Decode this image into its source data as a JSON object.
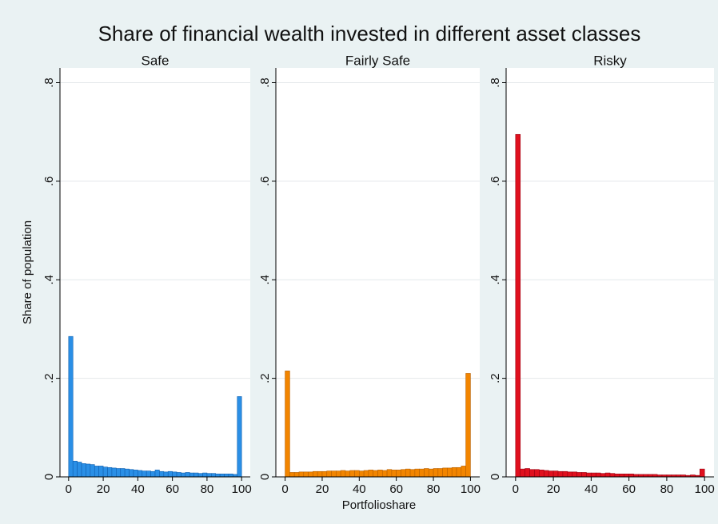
{
  "title": "Share of financial wealth invested in different asset classes",
  "ylabel": "Share of population",
  "xlabel": "Portfolioshare",
  "chart_data": [
    {
      "type": "histogram",
      "title": "Safe",
      "color": "#2a8fe6",
      "grid": true,
      "bins": [
        0,
        2.5,
        5,
        7.5,
        10,
        12.5,
        15,
        17.5,
        20,
        22.5,
        25,
        27.5,
        30,
        32.5,
        35,
        37.5,
        40,
        42.5,
        45,
        47.5,
        50,
        52.5,
        55,
        57.5,
        60,
        62.5,
        65,
        67.5,
        70,
        72.5,
        75,
        77.5,
        80,
        82.5,
        85,
        87.5,
        90,
        92.5,
        95,
        97.5,
        100
      ],
      "values": [
        0.285,
        0.032,
        0.03,
        0.027,
        0.026,
        0.025,
        0.022,
        0.022,
        0.02,
        0.019,
        0.018,
        0.017,
        0.017,
        0.016,
        0.015,
        0.014,
        0.013,
        0.012,
        0.012,
        0.011,
        0.014,
        0.011,
        0.01,
        0.011,
        0.01,
        0.009,
        0.008,
        0.009,
        0.008,
        0.008,
        0.007,
        0.008,
        0.007,
        0.007,
        0.006,
        0.006,
        0.006,
        0.006,
        0.005,
        0.163
      ],
      "xlim": [
        -5,
        105
      ],
      "xticks": [
        0,
        20,
        40,
        60,
        80,
        100
      ],
      "ylim": [
        0,
        0.83
      ],
      "yticks": [
        0,
        {
          "value": 0.2,
          "label": ".2"
        },
        {
          "value": 0.4,
          "label": ".4"
        },
        {
          "value": 0.6,
          "label": ".6"
        },
        {
          "value": 0.8,
          "label": ".8"
        }
      ]
    },
    {
      "type": "histogram",
      "title": "Fairly Safe",
      "color": "#f28500",
      "grid": true,
      "bins": [
        0,
        2.5,
        5,
        7.5,
        10,
        12.5,
        15,
        17.5,
        20,
        22.5,
        25,
        27.5,
        30,
        32.5,
        35,
        37.5,
        40,
        42.5,
        45,
        47.5,
        50,
        52.5,
        55,
        57.5,
        60,
        62.5,
        65,
        67.5,
        70,
        72.5,
        75,
        77.5,
        80,
        82.5,
        85,
        87.5,
        90,
        92.5,
        95,
        97.5,
        100
      ],
      "values": [
        0.215,
        0.009,
        0.009,
        0.01,
        0.01,
        0.01,
        0.011,
        0.011,
        0.011,
        0.012,
        0.012,
        0.012,
        0.013,
        0.012,
        0.013,
        0.013,
        0.012,
        0.013,
        0.014,
        0.013,
        0.014,
        0.013,
        0.015,
        0.014,
        0.014,
        0.015,
        0.016,
        0.015,
        0.016,
        0.016,
        0.017,
        0.016,
        0.017,
        0.017,
        0.018,
        0.018,
        0.019,
        0.019,
        0.022,
        0.21
      ],
      "xlim": [
        -5,
        105
      ],
      "xticks": [
        0,
        20,
        40,
        60,
        80,
        100
      ],
      "ylim": [
        0,
        0.83
      ],
      "yticks": [
        0,
        {
          "value": 0.2,
          "label": ".2"
        },
        {
          "value": 0.4,
          "label": ".4"
        },
        {
          "value": 0.6,
          "label": ".6"
        },
        {
          "value": 0.8,
          "label": ".8"
        }
      ]
    },
    {
      "type": "histogram",
      "title": "Risky",
      "color": "#e0101e",
      "grid": true,
      "bins": [
        0,
        2.5,
        5,
        7.5,
        10,
        12.5,
        15,
        17.5,
        20,
        22.5,
        25,
        27.5,
        30,
        32.5,
        35,
        37.5,
        40,
        42.5,
        45,
        47.5,
        50,
        52.5,
        55,
        57.5,
        60,
        62.5,
        65,
        67.5,
        70,
        72.5,
        75,
        77.5,
        80,
        82.5,
        85,
        87.5,
        90,
        92.5,
        95,
        97.5,
        100
      ],
      "values": [
        0.695,
        0.016,
        0.017,
        0.015,
        0.015,
        0.014,
        0.013,
        0.012,
        0.012,
        0.011,
        0.011,
        0.01,
        0.01,
        0.009,
        0.009,
        0.008,
        0.008,
        0.008,
        0.007,
        0.008,
        0.007,
        0.006,
        0.006,
        0.006,
        0.006,
        0.005,
        0.005,
        0.005,
        0.005,
        0.005,
        0.004,
        0.004,
        0.004,
        0.004,
        0.004,
        0.004,
        0.003,
        0.004,
        0.003,
        0.016
      ],
      "xlim": [
        -5,
        105
      ],
      "xticks": [
        0,
        20,
        40,
        60,
        80,
        100
      ],
      "ylim": [
        0,
        0.83
      ],
      "yticks": [
        0,
        {
          "value": 0.2,
          "label": ".2"
        },
        {
          "value": 0.4,
          "label": ".4"
        },
        {
          "value": 0.6,
          "label": ".6"
        },
        {
          "value": 0.8,
          "label": ".8"
        }
      ]
    }
  ]
}
